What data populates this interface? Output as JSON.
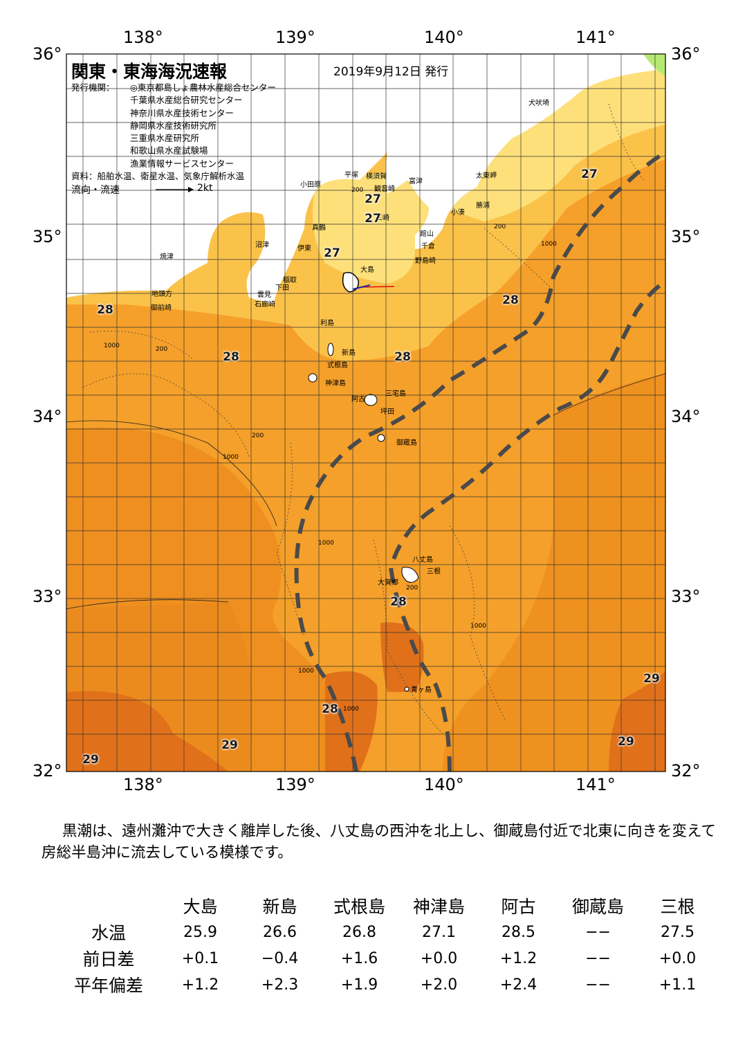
{
  "title": "関東・東海海況速報",
  "issue_date": "2019年9月12日 発行",
  "issuers_label": "発行機関：",
  "issuers": [
    "◎東京都島しょ農林水産総合センター",
    "千葉県水産総合研究センター",
    "神奈川県水産技術センター",
    "静岡県水産技術研究所",
    "三重県水産研究所",
    "和歌山県水産試験場",
    "漁業情報サービスセンター"
  ],
  "source": "資料：船舶水温、衛星水温、気象庁解析水温",
  "flow_legend": {
    "label": "流向・流速",
    "scale": "2kt"
  },
  "lon_labels": [
    "138°",
    "139°",
    "140°",
    "141°"
  ],
  "lat_labels": [
    "36°",
    "35°",
    "34°",
    "33°",
    "32°"
  ],
  "place_names": [
    "犬吠埼",
    "太東岬",
    "勝浦",
    "小湊",
    "館山",
    "千倉",
    "野島崎",
    "富津",
    "横須賀",
    "観音崎",
    "三崎",
    "平塚",
    "小田原",
    "真鶴",
    "伊東",
    "沼津",
    "焼津",
    "地頭方",
    "御前崎",
    "雲見",
    "石廊崎",
    "稲取",
    "下田",
    "大島",
    "利島",
    "新島",
    "式根島",
    "神津島",
    "三宅島",
    "阿古",
    "坪田",
    "御蔵島",
    "八丈島",
    "三根",
    "大賀郷",
    "青ヶ島"
  ],
  "temperature_labels": [
    "27",
    "27",
    "27",
    "27",
    "28",
    "28",
    "28",
    "28",
    "28",
    "28",
    "29",
    "29",
    "29",
    "29",
    "29"
  ],
  "depth_labels": [
    "1000",
    "1000",
    "200",
    "200",
    "1000",
    "200",
    "1000",
    "1000",
    "200",
    "1000",
    "1000",
    "200"
  ],
  "commentary": "黒潮は、遠州灘沖で大きく離岸した後、八丈島の西沖を北上し、御蔵島付近で北東に向きを変えて房総半島沖に流去している模様です。",
  "stats": {
    "stations": [
      "大島",
      "新島",
      "式根島",
      "神津島",
      "阿古",
      "御蔵島",
      "三根"
    ],
    "rows": [
      {
        "label": "水温",
        "values": [
          "25.9",
          "26.6",
          "26.8",
          "27.1",
          "28.5",
          "−−",
          "27.5"
        ]
      },
      {
        "label": "前日差",
        "values": [
          "+0.1",
          "−0.4",
          "+1.6",
          "+0.0",
          "+1.2",
          "−−",
          "+0.0"
        ]
      },
      {
        "label": "平年偏差",
        "values": [
          "+1.2",
          "+2.3",
          "+1.9",
          "+2.0",
          "+2.4",
          "−−",
          "+1.1"
        ]
      }
    ]
  },
  "colors": {
    "sea_28": "#f5a02a",
    "sea_29": "#e88a1c",
    "sea_warm_core": "#e07018",
    "sea_27": "#fbc24a",
    "sea_26": "#fde07a",
    "land": "#ffffff",
    "land_far": "#b7e873",
    "kuroshio_axis": "#4a4a4a"
  }
}
